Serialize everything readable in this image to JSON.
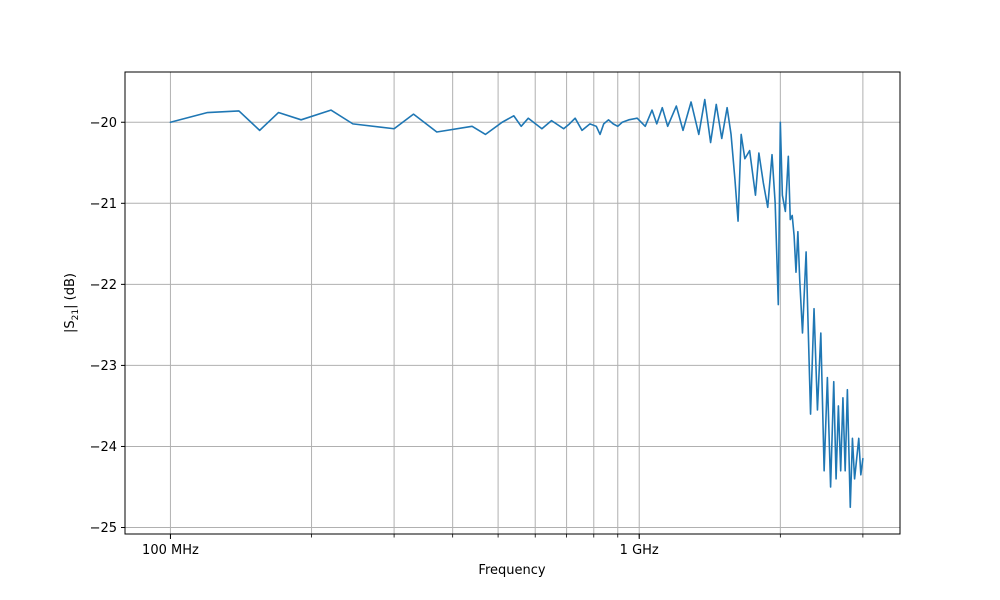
{
  "chart_data": {
    "type": "line",
    "title": "",
    "xlabel": "Frequency",
    "ylabel": "|S21| (dB)",
    "ylabel_parts": {
      "prefix": "|S",
      "subscript": "21",
      "suffix": "| (dB)"
    },
    "xscale": "log",
    "xlim": [
      0.08,
      3.6
    ],
    "ylim": [
      -25.08,
      -19.38
    ],
    "grid": true,
    "xticks": [
      {
        "value": 0.1,
        "label": "100 MHz"
      },
      {
        "value": 1,
        "label": "1 GHz"
      }
    ],
    "xgrid_values": [
      0.1,
      0.2,
      0.3,
      0.4,
      0.5,
      0.6,
      0.7,
      0.8,
      0.9,
      1,
      2,
      3
    ],
    "yticks": [
      {
        "value": -20,
        "label": "−20"
      },
      {
        "value": -21,
        "label": "−21"
      },
      {
        "value": -22,
        "label": "−22"
      },
      {
        "value": -23,
        "label": "−23"
      },
      {
        "value": -24,
        "label": "−24"
      },
      {
        "value": -25,
        "label": "−25"
      }
    ],
    "series": [
      {
        "color": "#1f77b4",
        "x": [
          0.1,
          0.12,
          0.14,
          0.155,
          0.17,
          0.19,
          0.22,
          0.245,
          0.3,
          0.33,
          0.37,
          0.44,
          0.47,
          0.51,
          0.54,
          0.56,
          0.58,
          0.62,
          0.65,
          0.69,
          0.71,
          0.73,
          0.755,
          0.785,
          0.81,
          0.825,
          0.84,
          0.86,
          0.88,
          0.9,
          0.92,
          0.95,
          0.99,
          1.03,
          1.065,
          1.09,
          1.12,
          1.15,
          1.2,
          1.24,
          1.29,
          1.34,
          1.38,
          1.42,
          1.46,
          1.5,
          1.54,
          1.57,
          1.6,
          1.625,
          1.65,
          1.68,
          1.72,
          1.77,
          1.8,
          1.84,
          1.88,
          1.92,
          1.95,
          1.98,
          2.0,
          2.02,
          2.05,
          2.08,
          2.1,
          2.12,
          2.14,
          2.16,
          2.18,
          2.2,
          2.23,
          2.27,
          2.32,
          2.36,
          2.4,
          2.44,
          2.48,
          2.52,
          2.56,
          2.6,
          2.63,
          2.66,
          2.69,
          2.72,
          2.75,
          2.78,
          2.82,
          2.85,
          2.88,
          2.91,
          2.94,
          2.97,
          3.0
        ],
        "y": [
          -20.0,
          -19.88,
          -19.86,
          -20.1,
          -19.88,
          -19.97,
          -19.85,
          -20.02,
          -20.08,
          -19.9,
          -20.12,
          -20.05,
          -20.15,
          -20.0,
          -19.92,
          -20.05,
          -19.95,
          -20.08,
          -19.98,
          -20.08,
          -20.02,
          -19.95,
          -20.1,
          -20.02,
          -20.05,
          -20.15,
          -20.02,
          -19.97,
          -20.02,
          -20.05,
          -20.0,
          -19.97,
          -19.95,
          -20.05,
          -19.85,
          -20.02,
          -19.82,
          -20.05,
          -19.8,
          -20.1,
          -19.75,
          -20.15,
          -19.72,
          -20.25,
          -19.78,
          -20.2,
          -19.82,
          -20.15,
          -20.7,
          -21.22,
          -20.15,
          -20.45,
          -20.35,
          -20.9,
          -20.38,
          -20.75,
          -21.05,
          -20.4,
          -21.0,
          -22.25,
          -20.0,
          -20.9,
          -21.1,
          -20.42,
          -21.2,
          -21.15,
          -21.4,
          -21.85,
          -21.35,
          -21.95,
          -22.6,
          -21.6,
          -23.6,
          -22.3,
          -23.55,
          -22.6,
          -24.3,
          -23.15,
          -24.5,
          -23.2,
          -24.4,
          -23.5,
          -24.3,
          -23.4,
          -24.3,
          -23.3,
          -24.75,
          -23.9,
          -24.4,
          -24.15,
          -23.9,
          -24.35,
          -24.15
        ]
      }
    ]
  }
}
